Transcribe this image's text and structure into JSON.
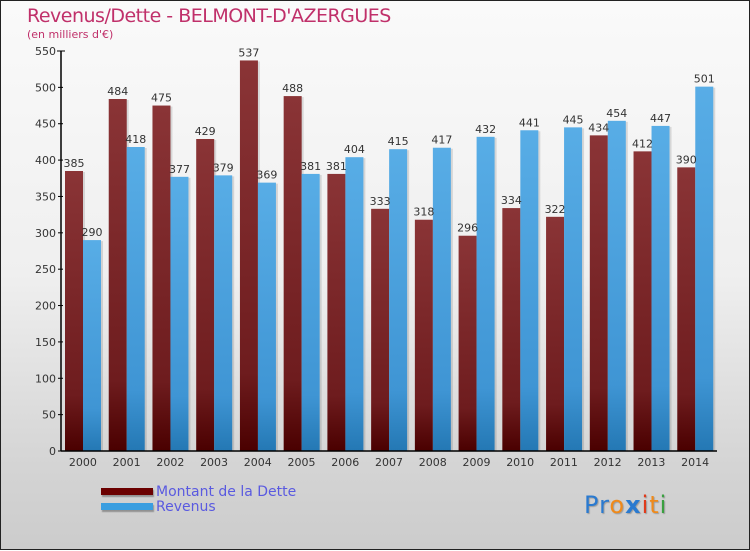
{
  "header": {
    "title": "Revenus/Dette - BELMONT-D'AZERGUES",
    "subtitle": "(en milliers d'€)"
  },
  "legend": {
    "items": [
      {
        "label": "Montant de la Dette",
        "color": "#6b0000"
      },
      {
        "label": "Revenus",
        "color": "#3a9ee0"
      }
    ]
  },
  "logo": {
    "letters": [
      {
        "ch": "P",
        "color": "#2a7ad0"
      },
      {
        "ch": "r",
        "color": "#2a7ad0"
      },
      {
        "ch": "o",
        "color": "#f08a1a"
      },
      {
        "ch": "x",
        "color": "#2a7ad0"
      },
      {
        "ch": "i",
        "color": "#e03a1a"
      },
      {
        "ch": "t",
        "color": "#f08a1a"
      },
      {
        "ch": "i",
        "color": "#3aa040"
      }
    ]
  },
  "chart_data": {
    "type": "bar",
    "title": "Revenus/Dette - BELMONT-D'AZERGUES",
    "subtitle": "(en milliers d'€)",
    "xlabel": "",
    "ylabel": "",
    "ylim": [
      0,
      550
    ],
    "yticks": [
      0,
      50,
      100,
      150,
      200,
      250,
      300,
      350,
      400,
      450,
      500,
      550
    ],
    "grid": false,
    "legend_position": "bottom-left",
    "categories": [
      "2000",
      "2001",
      "2002",
      "2003",
      "2004",
      "2005",
      "2006",
      "2007",
      "2008",
      "2009",
      "2010",
      "2011",
      "2012",
      "2013",
      "2014"
    ],
    "series": [
      {
        "name": "Montant de la Dette",
        "color": "#7a1f22",
        "values": [
          385,
          484,
          475,
          429,
          537,
          488,
          381,
          333,
          318,
          296,
          334,
          322,
          434,
          412,
          390
        ]
      },
      {
        "name": "Revenus",
        "color": "#4aa3e0",
        "values": [
          290,
          418,
          377,
          379,
          369,
          381,
          404,
          415,
          417,
          432,
          441,
          445,
          454,
          447,
          501
        ]
      }
    ]
  }
}
